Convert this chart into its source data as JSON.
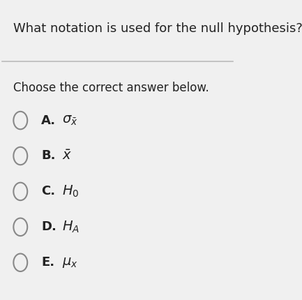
{
  "question": "What notation is used for the null hypothesis?",
  "subtext": "Choose the correct answer below.",
  "options": [
    {
      "letter": "A.",
      "math": "$\\sigma_\\bar{x}$"
    },
    {
      "letter": "B.",
      "math": "$\\bar{x}$"
    },
    {
      "letter": "C.",
      "math": "$H_0$"
    },
    {
      "letter": "D.",
      "math": "$H_A$"
    },
    {
      "letter": "E.",
      "math": "$\\mu_x$"
    }
  ],
  "bg_color": "#f0f0f0",
  "text_color": "#222222",
  "circle_color": "#888888",
  "line_color": "#bbbbbb",
  "question_fontsize": 13,
  "subtext_fontsize": 12,
  "option_fontsize": 13,
  "math_fontsize": 13,
  "fig_width": 4.33,
  "fig_height": 4.3
}
